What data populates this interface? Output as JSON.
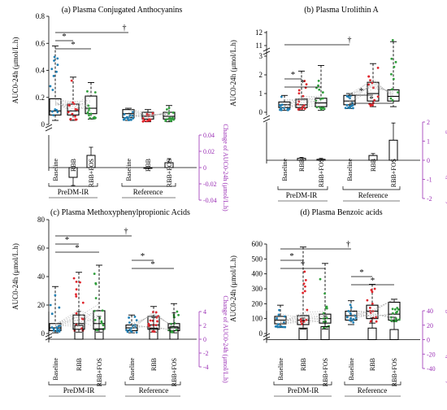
{
  "colors": {
    "baseline": "#1f7fb4",
    "rbb": "#e0242b",
    "rbb_fos": "#2e9e3a",
    "change_axis": "#9b30b5",
    "axis": "#000000",
    "guide": "#9a9a9a"
  },
  "group_labels": [
    "PreDM-IR",
    "Reference"
  ],
  "category_labels": [
    "Baseline",
    "RBB",
    "RBB+FOS"
  ],
  "left_axis_label": "AUC0-24h (μmol/L.h)",
  "right_axis_label": "Change of AUC0-24h (μmol/L.h)",
  "chart_data": [
    {
      "type": "box",
      "title": "(a) Plasma Conjugated Anthocyanins",
      "yticks": [
        "0",
        "0.2",
        "0.4",
        "0.6",
        "0.8"
      ],
      "ylim": [
        0,
        0.8
      ],
      "boxes": [
        {
          "group": "PreDM-IR",
          "category": "Baseline",
          "min": 0.03,
          "q1": 0.07,
          "median": 0.1,
          "q3": 0.19,
          "max": 0.58
        },
        {
          "group": "PreDM-IR",
          "category": "RBB",
          "min": 0.03,
          "q1": 0.07,
          "median": 0.1,
          "q3": 0.15,
          "max": 0.35
        },
        {
          "group": "PreDM-IR",
          "category": "RBB+FOS",
          "min": 0.04,
          "q1": 0.08,
          "median": 0.12,
          "q3": 0.21,
          "max": 0.31
        },
        {
          "group": "Reference",
          "category": "Baseline",
          "min": 0.03,
          "q1": 0.05,
          "median": 0.08,
          "q3": 0.11,
          "max": 0.12
        },
        {
          "group": "Reference",
          "category": "RBB",
          "min": 0.02,
          "q1": 0.04,
          "median": 0.06,
          "q3": 0.09,
          "max": 0.11
        },
        {
          "group": "Reference",
          "category": "RBB+FOS",
          "min": 0.02,
          "q1": 0.04,
          "median": 0.06,
          "q3": 0.09,
          "max": 0.14
        }
      ],
      "change_ticks": [
        "-0.04",
        "-0.02",
        "0",
        "0.02",
        "0.04"
      ],
      "change_lim": [
        -0.04,
        0.04
      ],
      "changes": [
        {
          "group": "PreDM-IR",
          "category": "RBB",
          "mean": -0.012,
          "err": 0.01
        },
        {
          "group": "PreDM-IR",
          "category": "RBB+FOS",
          "mean": 0.015,
          "err": 0.01
        },
        {
          "group": "Reference",
          "category": "RBB",
          "mean": -0.001,
          "err": 0
        },
        {
          "group": "Reference",
          "category": "RBB+FOS",
          "mean": 0.006,
          "err": 0.005
        }
      ],
      "annotations": [
        "*",
        "†"
      ]
    },
    {
      "type": "box",
      "title": "(b) Plasma Urolithin A",
      "yticks": [
        "0",
        "1",
        "2",
        "3",
        "11",
        "12"
      ],
      "ylim": [
        0,
        12
      ],
      "boxes": [
        {
          "group": "PreDM-IR",
          "category": "Baseline",
          "min": 0.1,
          "q1": 0.25,
          "median": 0.4,
          "q3": 0.55,
          "max": 0.9
        },
        {
          "group": "PreDM-IR",
          "category": "RBB",
          "min": 0.1,
          "q1": 0.25,
          "median": 0.4,
          "q3": 0.7,
          "max": 2.2
        },
        {
          "group": "PreDM-IR",
          "category": "RBB+FOS",
          "min": 0.1,
          "q1": 0.3,
          "median": 0.5,
          "q3": 0.75,
          "max": 2.5
        },
        {
          "group": "Reference",
          "category": "Baseline",
          "min": 0.2,
          "q1": 0.4,
          "median": 0.6,
          "q3": 0.9,
          "max": 1.0
        },
        {
          "group": "Reference",
          "category": "RBB",
          "min": 0.3,
          "q1": 0.6,
          "median": 1.0,
          "q3": 1.6,
          "max": 2.6
        },
        {
          "group": "Reference",
          "category": "RBB+FOS",
          "min": 0.3,
          "q1": 0.6,
          "median": 0.85,
          "q3": 1.2,
          "max": 11.3
        }
      ],
      "change_ticks": [
        "-2",
        "-1",
        "0",
        "1",
        "2"
      ],
      "change_lim": [
        -2,
        2
      ],
      "changes": [
        {
          "group": "PreDM-IR",
          "category": "RBB",
          "mean": 0.1,
          "err": 0.05
        },
        {
          "group": "PreDM-IR",
          "category": "RBB+FOS",
          "mean": 0.05,
          "err": 0.05
        },
        {
          "group": "Reference",
          "category": "RBB",
          "mean": 0.25,
          "err": 0.1
        },
        {
          "group": "Reference",
          "category": "RBB+FOS",
          "mean": 1.05,
          "err": 0.9
        }
      ],
      "annotations": [
        "*",
        "†"
      ]
    },
    {
      "type": "box",
      "title": "(c) Plasma Methoxyphenylpropionic Acids",
      "yticks": [
        "0",
        "20",
        "40",
        "60",
        "80"
      ],
      "ylim": [
        0,
        80
      ],
      "boxes": [
        {
          "group": "PreDM-IR",
          "category": "Baseline",
          "min": 0.5,
          "q1": 2,
          "median": 4,
          "q3": 7,
          "max": 33
        },
        {
          "group": "PreDM-IR",
          "category": "RBB",
          "min": 1,
          "q1": 3,
          "median": 7,
          "q3": 13,
          "max": 43
        },
        {
          "group": "PreDM-IR",
          "category": "RBB+FOS",
          "min": 1,
          "q1": 3,
          "median": 7,
          "q3": 16,
          "max": 48
        },
        {
          "group": "Reference",
          "category": "Baseline",
          "min": 0.5,
          "q1": 2,
          "median": 4,
          "q3": 6,
          "max": 13
        },
        {
          "group": "Reference",
          "category": "RBB",
          "min": 1,
          "q1": 3,
          "median": 6,
          "q3": 12,
          "max": 19
        },
        {
          "group": "Reference",
          "category": "RBB+FOS",
          "min": 0.5,
          "q1": 2,
          "median": 4,
          "q3": 7,
          "max": 21
        }
      ],
      "change_ticks": [
        "-4",
        "-2",
        "0",
        "2",
        "4"
      ],
      "change_lim": [
        -4,
        4
      ],
      "changes": [
        {
          "group": "PreDM-IR",
          "category": "RBB",
          "mean": 2.0,
          "err": 2.0
        },
        {
          "group": "PreDM-IR",
          "category": "RBB+FOS",
          "mean": 1.5,
          "err": 1.8
        },
        {
          "group": "Reference",
          "category": "RBB",
          "mean": 1.6,
          "err": 1.5
        },
        {
          "group": "Reference",
          "category": "RBB+FOS",
          "mean": 1.8,
          "err": 2.0
        }
      ],
      "annotations": [
        "*",
        "†"
      ]
    },
    {
      "type": "box",
      "title": "(d) Plasma Benzoic acids",
      "yticks": [
        "0",
        "100",
        "200",
        "300",
        "400",
        "500",
        "600"
      ],
      "ylim": [
        0,
        600
      ],
      "boxes": [
        {
          "group": "PreDM-IR",
          "category": "Baseline",
          "min": 40,
          "q1": 65,
          "median": 90,
          "q3": 115,
          "max": 190
        },
        {
          "group": "PreDM-IR",
          "category": "RBB",
          "min": 30,
          "q1": 60,
          "median": 90,
          "q3": 120,
          "max": 580
        },
        {
          "group": "PreDM-IR",
          "category": "RBB+FOS",
          "min": 30,
          "q1": 70,
          "median": 100,
          "q3": 130,
          "max": 470
        },
        {
          "group": "Reference",
          "category": "Baseline",
          "min": 60,
          "q1": 90,
          "median": 120,
          "q3": 150,
          "max": 220
        },
        {
          "group": "Reference",
          "category": "RBB",
          "min": 70,
          "q1": 100,
          "median": 150,
          "q3": 190,
          "max": 330
        },
        {
          "group": "Reference",
          "category": "RBB+FOS",
          "min": 80,
          "q1": 90,
          "median": 130,
          "q3": 210,
          "max": 230
        }
      ],
      "change_ticks": [
        "-40",
        "-20",
        "0",
        "20",
        "40"
      ],
      "change_lim": [
        -40,
        40
      ],
      "changes": [
        {
          "group": "PreDM-IR",
          "category": "RBB",
          "mean": 16,
          "err": 14
        },
        {
          "group": "PreDM-IR",
          "category": "RBB+FOS",
          "mean": 18,
          "err": 15
        },
        {
          "group": "Reference",
          "category": "RBB",
          "mean": 16,
          "err": 14
        },
        {
          "group": "Reference",
          "category": "RBB+FOS",
          "mean": 14,
          "err": 17
        }
      ],
      "annotations": [
        "*",
        "†"
      ]
    }
  ]
}
